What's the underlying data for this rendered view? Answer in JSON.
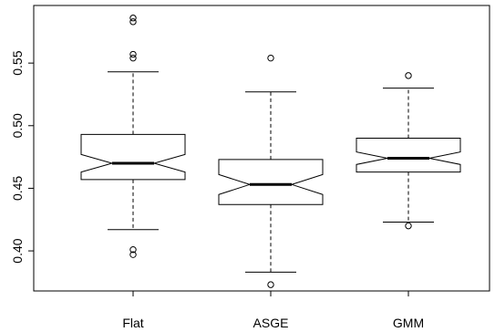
{
  "chart_data": {
    "type": "boxplot",
    "notched": true,
    "title": "",
    "xlabel": "",
    "ylabel": "",
    "categories": [
      "Flat",
      "ASGE",
      "GMM"
    ],
    "ylim": [
      0.368,
      0.596
    ],
    "yticks": [
      0.4,
      0.45,
      0.5,
      0.55
    ],
    "ytick_labels": [
      "0.40",
      "0.45",
      "0.50",
      "0.55"
    ],
    "grid": false,
    "boxes": [
      {
        "name": "Flat",
        "whisker_low": 0.417,
        "q1": 0.457,
        "median": 0.47,
        "q3": 0.493,
        "whisker_high": 0.543,
        "notch_low": 0.463,
        "notch_high": 0.477,
        "outliers": [
          0.397,
          0.401,
          0.554,
          0.557,
          0.583,
          0.586
        ]
      },
      {
        "name": "ASGE",
        "whisker_low": 0.383,
        "q1": 0.437,
        "median": 0.453,
        "q3": 0.473,
        "whisker_high": 0.527,
        "notch_low": 0.445,
        "notch_high": 0.461,
        "outliers": [
          0.373,
          0.554
        ]
      },
      {
        "name": "GMM",
        "whisker_low": 0.423,
        "q1": 0.463,
        "median": 0.474,
        "q3": 0.49,
        "whisker_high": 0.53,
        "notch_low": 0.469,
        "notch_high": 0.479,
        "outliers": [
          0.42,
          0.54
        ]
      }
    ]
  }
}
